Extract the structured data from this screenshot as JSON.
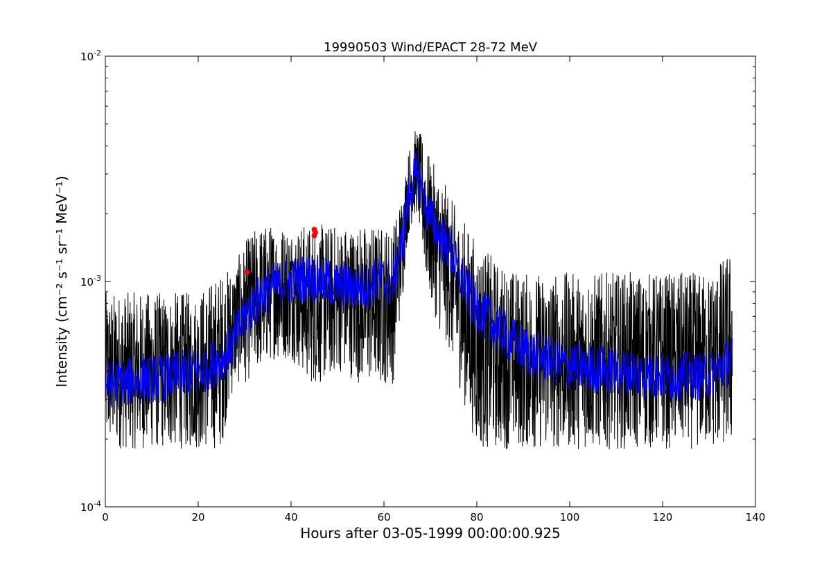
{
  "chart_data": {
    "type": "line",
    "title": "19990503 Wind/EPACT 28-72 MeV",
    "xlabel": "Hours after 03-05-1999 00:00:00.925",
    "ylabel": "Intensity (cm⁻² s⁻¹ sr⁻¹ MeV⁻¹)",
    "xlim": [
      0,
      140
    ],
    "ylim": [
      0.0001,
      0.01
    ],
    "yscale": "log",
    "grid": false,
    "x_ticks": [
      0,
      20,
      40,
      60,
      80,
      100,
      120,
      140
    ],
    "x_tick_labels": [
      "0",
      "20",
      "40",
      "60",
      "80",
      "100",
      "120",
      "140"
    ],
    "y_ticks": [
      {
        "value": 0.0001,
        "base": "10",
        "exp": "-4"
      },
      {
        "value": 0.001,
        "base": "10",
        "exp": "-3"
      },
      {
        "value": 0.01,
        "base": "10",
        "exp": "-2"
      }
    ],
    "series": [
      {
        "color": "#000000",
        "style": "line",
        "noise_floor": 0.00018,
        "x": [
          0,
          5,
          10,
          15,
          20,
          25,
          28,
          30,
          33,
          36,
          40,
          44,
          47,
          50,
          55,
          58,
          62,
          64,
          65,
          66,
          67,
          68,
          69,
          70,
          72,
          74,
          76,
          78,
          80,
          85,
          90,
          95,
          100,
          110,
          120,
          130,
          135
        ],
        "y_low": [
          0.00018,
          0.00018,
          0.00018,
          0.00018,
          0.00018,
          0.00018,
          0.00035,
          0.00035,
          0.0004,
          0.00045,
          0.00045,
          0.00035,
          0.00035,
          0.0004,
          0.00035,
          0.00035,
          0.00035,
          0.0008,
          0.0015,
          0.0018,
          0.002,
          0.0015,
          0.001,
          0.0008,
          0.0006,
          0.0005,
          0.00035,
          0.00025,
          0.00018,
          0.00018,
          0.00018,
          0.00018,
          0.00018,
          0.00018,
          0.00018,
          0.00018,
          0.00018
        ],
        "y_high": [
          0.0009,
          0.0009,
          0.0009,
          0.0009,
          0.0009,
          0.0011,
          0.0012,
          0.0015,
          0.0018,
          0.0018,
          0.0018,
          0.0018,
          0.0018,
          0.0018,
          0.0018,
          0.0018,
          0.0018,
          0.0025,
          0.0035,
          0.0045,
          0.0048,
          0.0045,
          0.004,
          0.0035,
          0.003,
          0.0025,
          0.002,
          0.0018,
          0.0015,
          0.0012,
          0.0011,
          0.0011,
          0.0011,
          0.0011,
          0.0011,
          0.0011,
          0.0014
        ]
      },
      {
        "color": "#0000ff",
        "style": "line",
        "x": [
          0,
          5,
          10,
          15,
          20,
          25,
          28,
          30,
          33,
          36,
          40,
          44,
          47,
          50,
          55,
          58,
          62,
          64,
          65,
          66,
          67,
          68,
          69,
          70,
          72,
          74,
          76,
          78,
          80,
          85,
          90,
          95,
          100,
          110,
          120,
          130,
          135
        ],
        "y": [
          0.00035,
          0.00036,
          0.00037,
          0.00038,
          0.0004,
          0.00045,
          0.00055,
          0.0007,
          0.00085,
          0.00095,
          0.001,
          0.00105,
          0.001,
          0.00095,
          0.00095,
          0.001,
          0.001,
          0.0015,
          0.0022,
          0.0027,
          0.003,
          0.0027,
          0.0022,
          0.0019,
          0.0016,
          0.0014,
          0.0011,
          0.0009,
          0.00075,
          0.0006,
          0.0005,
          0.00045,
          0.00042,
          0.0004,
          0.00038,
          0.00038,
          0.00045
        ]
      },
      {
        "color": "#ff0000",
        "style": "points",
        "x": [
          30.5,
          45.0,
          45.0,
          45.2
        ],
        "y": [
          0.0011,
          0.0016,
          0.0017,
          0.00165
        ]
      }
    ]
  }
}
